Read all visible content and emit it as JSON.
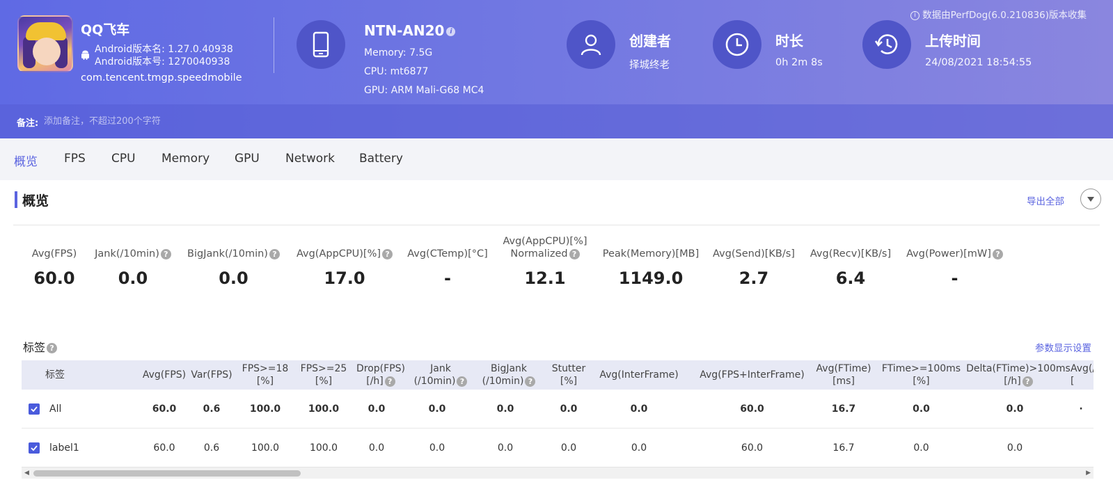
{
  "app": {
    "name": "QQ飞车",
    "version_name": "Android版本名: 1.27.0.40938",
    "version_code": "Android版本号: 1270040938",
    "package": "com.tencent.tmgp.speedmobile"
  },
  "device": {
    "name": "NTN-AN20",
    "memory": "Memory: 7.5G",
    "cpu": "CPU: mt6877",
    "gpu": "GPU: ARM Mali-G68 MC4"
  },
  "creator": {
    "title": "创建者",
    "value": "择城终老"
  },
  "duration": {
    "title": "时长",
    "value": "0h 2m 8s"
  },
  "upload": {
    "title": "上传时间",
    "value": "24/08/2021 18:54:55"
  },
  "source_note": "数据由PerfDog(6.0.210836)版本收集",
  "note": {
    "label": "备注:",
    "placeholder": "添加备注，不超过200个字符"
  },
  "tabs": [
    "概览",
    "FPS",
    "CPU",
    "Memory",
    "GPU",
    "Network",
    "Battery"
  ],
  "overview": {
    "title": "概览",
    "export_label": "导出全部",
    "metrics": [
      {
        "label": "Avg(FPS)",
        "value": "60.0"
      },
      {
        "label": "Jank(/10min)",
        "value": "0.0"
      },
      {
        "label": "BigJank(/10min)",
        "value": "0.0"
      },
      {
        "label": "Avg(AppCPU)[%]",
        "value": "17.0"
      },
      {
        "label": "Avg(CTemp)[°C]",
        "value": "-"
      },
      {
        "label": "Avg(AppCPU)[%]",
        "label2": "Normalized",
        "value": "12.1"
      },
      {
        "label": "Peak(Memory)[MB]",
        "value": "1149.0"
      },
      {
        "label": "Avg(Send)[KB/s]",
        "value": "2.7"
      },
      {
        "label": "Avg(Recv)[KB/s]",
        "value": "6.4"
      },
      {
        "label": "Avg(Power)[mW]",
        "value": "-"
      }
    ]
  },
  "tags": {
    "title": "标签",
    "param_label": "参数显示设置",
    "columns": [
      {
        "l1": "标签"
      },
      {
        "l1": "Avg(FPS)"
      },
      {
        "l1": "Var(FPS)"
      },
      {
        "l1": "FPS>=18",
        "l2": "[%]"
      },
      {
        "l1": "FPS>=25",
        "l2": "[%]"
      },
      {
        "l1": "Drop(FPS)",
        "l2": "[/h]"
      },
      {
        "l1": "Jank",
        "l2": "(/10min)"
      },
      {
        "l1": "BigJank",
        "l2": "(/10min)"
      },
      {
        "l1": "Stutter",
        "l2": "[%]"
      },
      {
        "l1": "Avg(InterFrame)"
      },
      {
        "l1": "Avg(FPS+InterFrame)"
      },
      {
        "l1": "Avg(FTime)",
        "l2": "[ms]"
      },
      {
        "l1": "FTime>=100ms",
        "l2": "[%]"
      },
      {
        "l1": "Delta(FTime)>100ms",
        "l2": "[/h]"
      },
      {
        "l1": "Avg(/",
        "l2": "["
      }
    ],
    "rows": [
      {
        "label": "All",
        "cells": [
          "60.0",
          "0.6",
          "100.0",
          "100.0",
          "0.0",
          "0.0",
          "0.0",
          "0.0",
          "0.0",
          "60.0",
          "16.7",
          "0.0",
          "0.0",
          "·"
        ]
      },
      {
        "label": "label1",
        "cells": [
          "60.0",
          "0.6",
          "100.0",
          "100.0",
          "0.0",
          "0.0",
          "0.0",
          "0.0",
          "0.0",
          "60.0",
          "16.7",
          "0.0",
          "0.0",
          ""
        ]
      }
    ]
  }
}
